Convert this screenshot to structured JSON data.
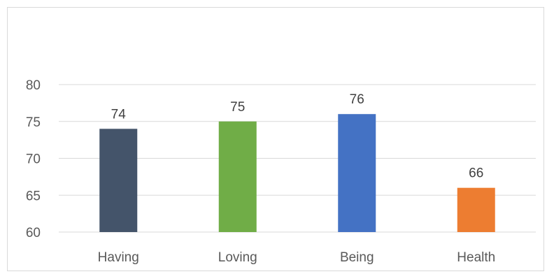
{
  "chart_data": {
    "type": "bar",
    "categories": [
      "Having",
      "Loving",
      "Being",
      "Health"
    ],
    "values": [
      74,
      75,
      76,
      66
    ],
    "colors": [
      "#44546a",
      "#70ad47",
      "#4472c4",
      "#ed7d31"
    ],
    "data_labels": [
      "74",
      "75",
      "76",
      "66"
    ],
    "title": "",
    "xlabel": "",
    "ylabel": "",
    "ylim": [
      60,
      80
    ],
    "yticks": [
      60,
      65,
      70,
      75,
      80
    ],
    "grid": true,
    "legend": "none"
  }
}
